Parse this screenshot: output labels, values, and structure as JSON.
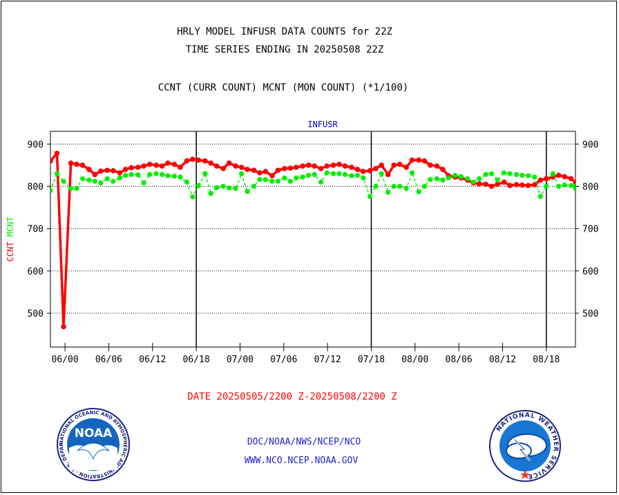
{
  "header": {
    "title_line1": "HRLY MODEL INFUSR DATA COUNTS for 22Z",
    "title_line2": "TIME SERIES ENDING IN 20250508 22Z",
    "subtitle": "CCNT (CURR COUNT) MCNT (MON COUNT) (*1/100)"
  },
  "footer": {
    "links": [
      "DOC/NOAA/NWS/NCEP/NCO",
      "WWW.NCO.NCEP.NOAA.GOV"
    ],
    "noaa_logo_text": "NOAA",
    "noaa_ring_text": "NATIONAL OCEANIC AND ATMOSPHERIC ADMINISTRATION · U.S. DEPARTMENT OF COMMERCE",
    "nws_ring_text": "NATIONAL WEATHER SERVICE"
  },
  "colors": {
    "ccnt": "#ff0000",
    "mcnt": "#00ee00",
    "plot_label": "#0000cc",
    "link": "#2222cc",
    "axis": "#000000"
  },
  "chart_data": {
    "type": "line",
    "title": "INFUSR",
    "xlabel": "DATE 20250505/2200 Z-20250508/2200 Z",
    "ylabel_parts": [
      "CCNT",
      "MCNT"
    ],
    "ylim": [
      420,
      930
    ],
    "yticks": [
      500,
      600,
      700,
      800,
      900
    ],
    "grid": true,
    "x_ticks": [
      "06/00",
      "06/06",
      "06/12",
      "06/18",
      "07/00",
      "07/06",
      "07/12",
      "07/18",
      "08/00",
      "08/06",
      "08/12",
      "08/18"
    ],
    "x_tick_hours": [
      2,
      8,
      14,
      20,
      26,
      32,
      38,
      44,
      50,
      56,
      62,
      68
    ],
    "x_major_hours": [
      20,
      44,
      68
    ],
    "xlim_hours": [
      0,
      72
    ],
    "series": [
      {
        "name": "CCNT",
        "values": [
          860,
          878,
          468,
          855,
          852,
          850,
          840,
          828,
          836,
          838,
          837,
          832,
          840,
          844,
          845,
          848,
          852,
          850,
          848,
          855,
          852,
          845,
          860,
          864,
          862,
          860,
          855,
          848,
          842,
          855,
          848,
          845,
          840,
          838,
          832,
          835,
          825,
          838,
          842,
          843,
          845,
          848,
          850,
          848,
          842,
          848,
          850,
          852,
          848,
          845,
          840,
          835,
          837,
          842,
          850,
          828,
          850,
          852,
          845,
          862,
          862,
          860,
          850,
          848,
          840,
          825,
          822,
          820,
          815,
          808,
          806,
          805,
          800,
          805,
          810,
          802,
          804,
          803,
          802,
          804,
          815,
          818,
          822,
          826,
          823,
          818,
          810
        ],
        "hours": [
          0,
          0.9,
          1.8,
          2.8,
          3.6,
          4.4,
          5.3,
          6.1,
          6.9,
          7.8,
          8.6,
          9.5,
          10.3,
          11.1,
          12,
          12.8,
          13.6,
          14.5,
          15.3,
          16.1,
          17,
          17.8,
          18.7,
          19.5,
          20.3,
          21.2,
          22,
          22.8,
          23.7,
          24.5,
          25.4,
          26.2,
          27,
          27.9,
          28.7,
          29.5,
          30.4,
          31.2,
          32.1,
          32.9,
          33.7,
          34.6,
          35.4,
          36.2,
          37.1,
          37.9,
          38.8,
          39.6,
          40.4,
          41.3,
          42.1,
          42.9,
          43.8,
          44.6,
          45.4,
          46.3,
          47.1,
          47.9,
          48.8,
          49.6,
          50.5,
          51.3,
          52.1,
          53,
          53.8,
          54.6,
          55.5,
          56.3,
          57.2,
          58,
          58.8,
          59.7,
          60.5,
          61.3,
          62.2,
          63,
          63.9,
          64.7,
          65.5,
          66.4,
          67.2,
          68,
          68.9,
          69.7,
          70.5,
          71.4,
          72
        ]
      },
      {
        "name": "MCNT",
        "values": [
          790,
          830,
          812,
          795,
          795,
          818,
          815,
          812,
          808,
          818,
          812,
          820,
          826,
          828,
          827,
          808,
          828,
          830,
          828,
          825,
          824,
          822,
          810,
          775,
          802,
          830,
          783,
          797,
          800,
          796,
          795,
          830,
          788,
          800,
          816,
          816,
          812,
          812,
          820,
          812,
          820,
          822,
          826,
          828,
          810,
          832,
          830,
          830,
          828,
          825,
          826,
          820,
          776,
          800,
          830,
          786,
          800,
          800,
          795,
          832,
          787,
          800,
          816,
          818,
          815,
          820,
          826,
          823,
          818,
          810,
          818,
          828,
          830,
          815,
          832,
          830,
          828,
          826,
          825,
          822,
          776,
          800,
          830,
          800,
          803,
          802,
          800,
          795
        ],
        "hours": [
          0,
          0.9,
          1.8,
          2.8,
          3.6,
          4.4,
          5.3,
          6.1,
          6.9,
          7.8,
          8.6,
          9.5,
          10.3,
          11.1,
          12,
          12.8,
          13.6,
          14.5,
          15.3,
          16.1,
          17,
          17.8,
          18.7,
          19.5,
          20.3,
          21.2,
          22,
          22.8,
          23.7,
          24.5,
          25.4,
          26.2,
          27,
          27.9,
          28.7,
          29.5,
          30.4,
          31.2,
          32.1,
          32.9,
          33.7,
          34.6,
          35.4,
          36.2,
          37.1,
          37.9,
          38.8,
          39.6,
          40.4,
          41.3,
          42.1,
          42.9,
          43.8,
          44.6,
          45.4,
          46.3,
          47.1,
          47.9,
          48.8,
          49.6,
          50.5,
          51.3,
          52.1,
          53,
          53.8,
          54.6,
          55.5,
          56.3,
          57.2,
          58,
          58.8,
          59.7,
          60.5,
          61.3,
          62.2,
          63,
          63.9,
          64.7,
          65.5,
          66.4,
          67.2,
          68,
          68.9,
          69.7,
          70.5,
          71.4,
          72,
          72
        ]
      }
    ]
  }
}
